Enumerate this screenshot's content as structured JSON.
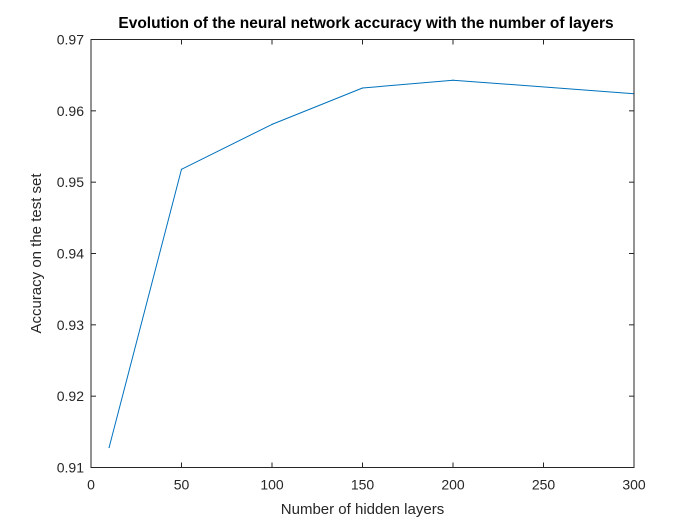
{
  "chart_data": {
    "type": "line",
    "title": "Evolution of the neural network accuracy with the number of layers",
    "xlabel": "Number of hidden layers",
    "ylabel": "Accuracy on the test set",
    "xlim": [
      0,
      300
    ],
    "ylim": [
      0.91,
      0.97
    ],
    "x_ticks": [
      0,
      50,
      100,
      150,
      200,
      250,
      300
    ],
    "y_ticks": [
      0.91,
      0.92,
      0.93,
      0.94,
      0.95,
      0.96,
      0.97
    ],
    "x_tick_labels": [
      "0",
      "50",
      "100",
      "150",
      "200",
      "250",
      "300"
    ],
    "y_tick_labels": [
      "0.91",
      "0.92",
      "0.93",
      "0.94",
      "0.95",
      "0.96",
      "0.97"
    ],
    "grid": false,
    "series": [
      {
        "color": "#0072BD",
        "x": [
          10,
          50,
          100,
          150,
          200,
          300
        ],
        "y": [
          0.9128,
          0.9518,
          0.9581,
          0.9632,
          0.9643,
          0.9624
        ]
      }
    ]
  }
}
